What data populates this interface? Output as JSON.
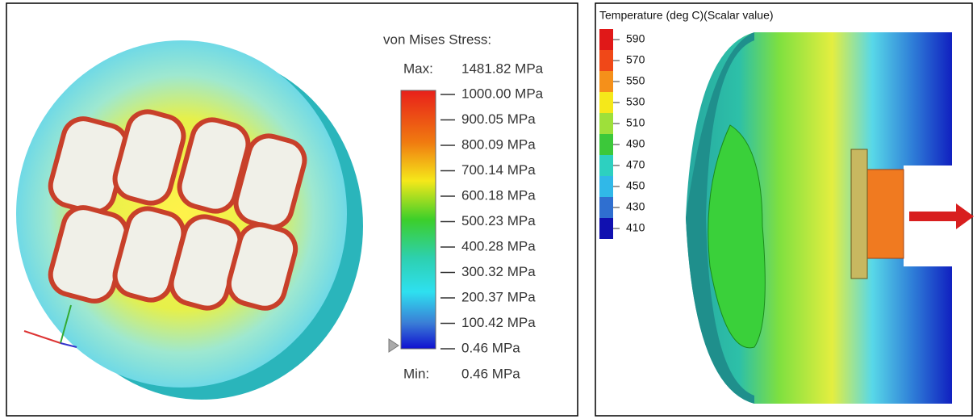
{
  "left_panel": {
    "legend": {
      "title": "von Mises Stress:",
      "max_label": "Max:",
      "max_value": "1481.82 MPa",
      "levels": [
        "1000.00 MPa",
        "900.05 MPa",
        "800.09 MPa",
        "700.14 MPa",
        "600.18 MPa",
        "500.23 MPa",
        "400.28 MPa",
        "300.32 MPa",
        "200.37 MPa",
        "100.42 MPa",
        "0.46 MPa"
      ],
      "min_label": "Min:",
      "min_value": "0.46 MPa"
    }
  },
  "right_panel": {
    "legend": {
      "title": "Temperature (deg C)(Scalar value)",
      "levels": [
        "590",
        "570",
        "550",
        "530",
        "510",
        "490",
        "470",
        "450",
        "430",
        "410"
      ]
    }
  }
}
